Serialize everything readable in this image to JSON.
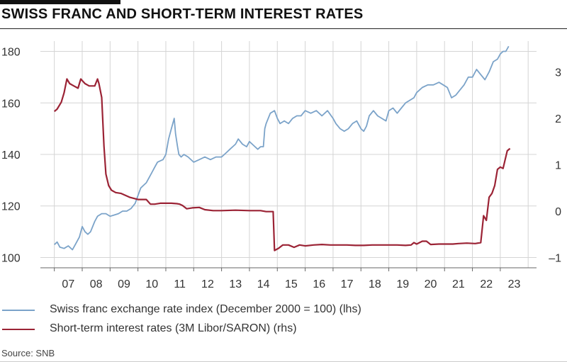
{
  "header": {
    "title": "SWISS FRANC AND SHORT-TERM INTEREST RATES"
  },
  "legend": {
    "items": [
      {
        "label": "Swiss franc exchange rate index (December 2000 = 100) (lhs)",
        "color": "#7ba3c9"
      },
      {
        "label": "Short-term interest rates (3M Libor/SARON) (rhs)",
        "color": "#9b2335"
      }
    ]
  },
  "footer": {
    "source": "Source: SNB"
  },
  "chart_data": {
    "type": "line",
    "xlabel": "",
    "ylabel": "",
    "grid": true,
    "x_ticks": [
      "07",
      "08",
      "09",
      "10",
      "11",
      "12",
      "13",
      "14",
      "15",
      "16",
      "17",
      "18",
      "19",
      "20",
      "21",
      "22",
      "23"
    ],
    "xlim": [
      2006.5,
      2024.3
    ],
    "y_left": {
      "lim": [
        96,
        184
      ],
      "ticks": [
        100,
        120,
        140,
        160,
        180
      ]
    },
    "y_right": {
      "lim": [
        -1.2222,
        3.6667
      ],
      "ticks": [
        {
          "v": -1,
          "label": "–1"
        },
        {
          "v": 0,
          "label": "0"
        },
        {
          "v": 1,
          "label": "1"
        },
        {
          "v": 2,
          "label": "2"
        },
        {
          "v": 3,
          "label": "3"
        }
      ]
    },
    "series": [
      {
        "name": "Swiss franc exchange rate index (December 2000 = 100) (lhs)",
        "axis": "left",
        "color": "#7ba3c9",
        "x": [
          2007.0,
          2007.1,
          2007.2,
          2007.35,
          2007.5,
          2007.65,
          2007.75,
          2007.9,
          2008.0,
          2008.1,
          2008.2,
          2008.3,
          2008.45,
          2008.55,
          2008.7,
          2008.85,
          2009.0,
          2009.15,
          2009.3,
          2009.45,
          2009.6,
          2009.75,
          2009.9,
          2010.0,
          2010.1,
          2010.2,
          2010.3,
          2010.4,
          2010.5,
          2010.6,
          2010.7,
          2010.8,
          2010.9,
          2011.0,
          2011.1,
          2011.2,
          2011.3,
          2011.35,
          2011.42,
          2011.47,
          2011.55,
          2011.65,
          2011.8,
          2012.0,
          2012.2,
          2012.4,
          2012.6,
          2012.8,
          2013.0,
          2013.1,
          2013.2,
          2013.3,
          2013.4,
          2013.5,
          2013.6,
          2013.75,
          2013.9,
          2014.0,
          2014.1,
          2014.2,
          2014.3,
          2014.4,
          2014.5,
          2014.55,
          2014.6,
          2014.75,
          2014.9,
          2015.0,
          2015.1,
          2015.25,
          2015.4,
          2015.55,
          2015.7,
          2015.85,
          2016.0,
          2016.2,
          2016.4,
          2016.6,
          2016.8,
          2017.0,
          2017.1,
          2017.25,
          2017.4,
          2017.55,
          2017.7,
          2017.85,
          2018.0,
          2018.1,
          2018.2,
          2018.3,
          2018.45,
          2018.6,
          2018.75,
          2018.9,
          2019.0,
          2019.15,
          2019.3,
          2019.45,
          2019.6,
          2019.75,
          2019.9,
          2020.0,
          2020.2,
          2020.4,
          2020.6,
          2020.8,
          2020.95,
          2021.1,
          2021.25,
          2021.4,
          2021.55,
          2021.7,
          2021.85,
          2022.0,
          2022.15,
          2022.3,
          2022.45,
          2022.6,
          2022.75,
          2022.9,
          2023.0,
          2023.1,
          2023.2,
          2023.3
        ],
        "values": [
          105,
          106,
          104,
          103.5,
          104.5,
          103,
          105,
          108,
          112,
          110,
          109,
          110,
          114,
          116,
          117,
          117,
          116,
          116.5,
          117,
          118,
          118,
          119,
          121,
          124,
          127,
          128,
          129,
          131,
          133,
          135,
          137,
          137.5,
          138,
          140,
          146,
          150,
          154,
          148,
          143,
          140,
          139,
          140,
          139,
          137,
          138,
          139,
          138,
          139,
          139,
          140,
          141,
          142,
          143,
          144,
          146,
          144,
          143,
          145,
          144,
          143,
          142,
          143,
          143,
          150,
          152,
          156,
          157,
          154,
          152,
          153,
          152,
          154,
          155,
          155,
          157,
          156,
          157,
          155,
          157,
          154,
          152,
          150,
          149,
          150,
          152,
          153,
          150,
          149,
          151,
          155,
          157,
          155,
          154,
          153,
          157,
          158,
          156,
          158,
          160,
          161,
          162,
          164,
          166,
          167,
          167,
          168,
          167,
          166,
          162,
          163,
          165,
          167,
          170,
          170,
          173,
          171,
          169,
          172,
          176,
          177,
          179,
          180,
          180,
          182
        ]
      },
      {
        "name": "Short-term interest rates (3M Libor/SARON) (rhs)",
        "axis": "right",
        "color": "#9b2335",
        "x": [
          2007.0,
          2007.1,
          2007.25,
          2007.35,
          2007.45,
          2007.55,
          2007.7,
          2007.85,
          2007.95,
          2008.1,
          2008.25,
          2008.35,
          2008.45,
          2008.55,
          2008.6,
          2008.7,
          2008.78,
          2008.85,
          2008.95,
          2009.05,
          2009.2,
          2009.4,
          2009.7,
          2010.0,
          2010.3,
          2010.45,
          2010.6,
          2010.8,
          2011.0,
          2011.2,
          2011.4,
          2011.5,
          2011.6,
          2011.75,
          2011.95,
          2012.2,
          2012.4,
          2012.7,
          2013.0,
          2013.5,
          2014.0,
          2014.4,
          2014.6,
          2014.85,
          2014.9,
          2015.05,
          2015.2,
          2015.4,
          2015.6,
          2015.8,
          2016.0,
          2016.3,
          2016.6,
          2016.9,
          2017.2,
          2017.5,
          2017.8,
          2018.1,
          2018.4,
          2018.7,
          2019.0,
          2019.3,
          2019.6,
          2019.8,
          2019.9,
          2020.0,
          2020.2,
          2020.35,
          2020.5,
          2020.8,
          2021.1,
          2021.3,
          2021.5,
          2021.8,
          2022.1,
          2022.3,
          2022.4,
          2022.5,
          2022.6,
          2022.7,
          2022.8,
          2022.9,
          2023.0,
          2023.1,
          2023.25,
          2023.35
        ],
        "values": [
          2.15,
          2.2,
          2.35,
          2.55,
          2.85,
          2.75,
          2.7,
          2.65,
          2.85,
          2.75,
          2.7,
          2.7,
          2.7,
          2.85,
          2.75,
          2.45,
          1.4,
          0.8,
          0.55,
          0.45,
          0.4,
          0.38,
          0.3,
          0.25,
          0.25,
          0.15,
          0.15,
          0.17,
          0.17,
          0.17,
          0.16,
          0.15,
          0.12,
          0.05,
          0.07,
          0.08,
          0.03,
          0.01,
          0.01,
          0.02,
          0.01,
          0.01,
          -0.01,
          -0.01,
          -0.85,
          -0.8,
          -0.73,
          -0.73,
          -0.78,
          -0.73,
          -0.75,
          -0.73,
          -0.72,
          -0.73,
          -0.73,
          -0.73,
          -0.74,
          -0.74,
          -0.73,
          -0.73,
          -0.73,
          -0.73,
          -0.74,
          -0.73,
          -0.68,
          -0.71,
          -0.65,
          -0.65,
          -0.72,
          -0.71,
          -0.71,
          -0.71,
          -0.7,
          -0.69,
          -0.7,
          -0.68,
          -0.1,
          -0.2,
          0.3,
          0.38,
          0.55,
          0.9,
          0.95,
          0.92,
          1.3,
          1.35
        ]
      }
    ]
  }
}
